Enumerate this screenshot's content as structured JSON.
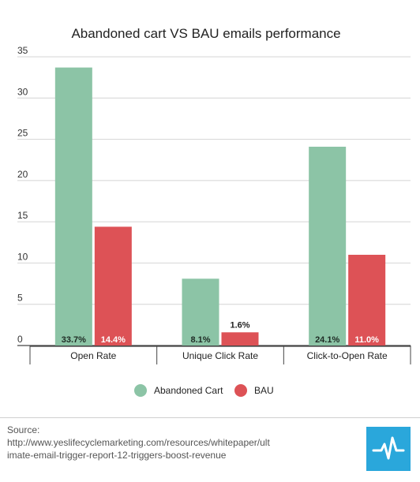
{
  "chart_data": {
    "type": "bar",
    "title": "Abandoned cart VS BAU emails performance",
    "categories": [
      "Open Rate",
      "Unique Click Rate",
      "Click-to-Open Rate"
    ],
    "series": [
      {
        "name": "Abandoned Cart",
        "color": "#8cc4a6",
        "values": [
          33.7,
          8.1,
          24.1
        ],
        "data_labels": [
          "33.7%",
          "8.1%",
          "24.1%"
        ]
      },
      {
        "name": "BAU",
        "color": "#dd5256",
        "values": [
          14.4,
          1.6,
          11.0
        ],
        "data_labels": [
          "14.4%",
          "1.6%",
          "11.0%"
        ]
      }
    ],
    "ylim": [
      0,
      35
    ],
    "yticks": [
      0,
      5,
      10,
      15,
      20,
      25,
      30,
      35
    ],
    "grid": true,
    "legend": "bottom-center"
  },
  "footer": {
    "source_label": "Source:",
    "source_line1": "http://www.yeslifecyclemarketing.com/resources/whitepaper/ult",
    "source_line2": "imate-email-trigger-report-12-triggers-boost-revenue",
    "logo_icon": "pulse-line-icon",
    "logo_color": "#2aa7db"
  }
}
